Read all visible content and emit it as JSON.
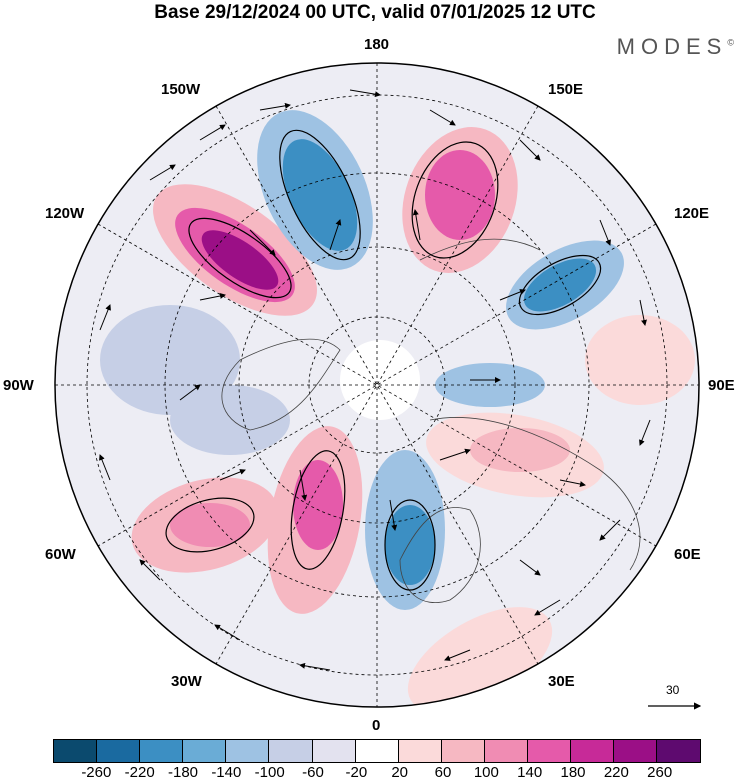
{
  "header": {
    "title": "Base 29/12/2024 00 UTC, valid 07/01/2025 12 UTC",
    "brand": "MODES",
    "brand_mark": "©"
  },
  "map": {
    "projection": "north polar stereographic",
    "longitude_labels": {
      "top": "180",
      "top_right": "150E",
      "right_upper": "120E",
      "right": "90E",
      "right_lower": "60E",
      "bottom_right": "30E",
      "bottom": "0",
      "bottom_left": "30W",
      "left_lower": "60W",
      "left": "90W",
      "left_upper": "120W",
      "top_left": "150W"
    },
    "reference_vector_label": "30"
  },
  "colorbar": {
    "colors": [
      "#0b4a6e",
      "#1a6aa0",
      "#3c8fc3",
      "#6aacd6",
      "#9ec2e3",
      "#c6cfe6",
      "#e3e2ef",
      "#ffffff",
      "#fbdada",
      "#f6b8c2",
      "#f08cb3",
      "#e55aaa",
      "#c72a98",
      "#9b0f86",
      "#5e0a6f"
    ],
    "ticks": [
      "-260",
      "-220",
      "-180",
      "-140",
      "-100",
      "-60",
      "-20",
      "20",
      "60",
      "100",
      "140",
      "180",
      "220",
      "260"
    ]
  }
}
